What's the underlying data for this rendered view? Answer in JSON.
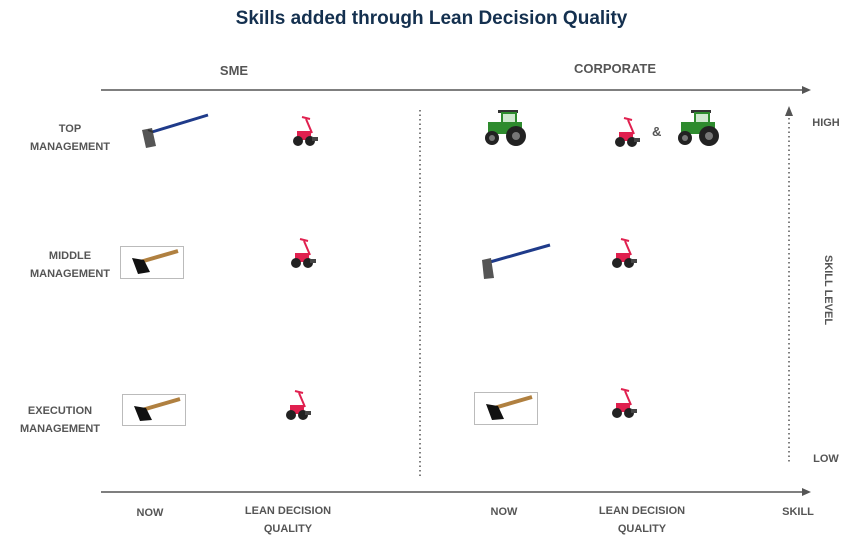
{
  "title": "Skills added through Lean Decision Quality",
  "columns": {
    "sme": "SME",
    "corporate": "CORPORATE"
  },
  "rows": {
    "top": [
      "TOP",
      "MANAGEMENT"
    ],
    "middle": [
      "MIDDLE",
      "MANAGEMENT"
    ],
    "execution": [
      "EXECUTION",
      "MANAGEMENT"
    ]
  },
  "x_axis": {
    "now_sme": "NOW",
    "ldq_sme": [
      "LEAN DECISION",
      "QUALITY"
    ],
    "now_corp": "NOW",
    "ldq_corp": [
      "LEAN DECISION",
      "QUALITY"
    ],
    "end_label": "SKILL"
  },
  "y_axis": {
    "high": "HIGH",
    "low": "LOW",
    "label": "SKILL LEVEL"
  },
  "ampersand": "&",
  "colors": {
    "title": "#14304f",
    "label": "#555555",
    "axis": "#555555",
    "hoe_handle": "#1f3b8a",
    "cultivator": "#e0204f",
    "tractor": "#2e8b2e"
  },
  "icons": {
    "top_sme_now": "long-hoe-icon",
    "top_sme_ldq": "cultivator-icon",
    "top_corp_now": "tractor-icon",
    "top_corp_ldq": [
      "cultivator-icon",
      "tractor-icon"
    ],
    "middle_sme_now": "short-hoe-icon",
    "middle_sme_ldq": "cultivator-icon",
    "middle_corp_now": "long-hoe-icon",
    "middle_corp_ldq": "cultivator-icon",
    "execution_sme_now": "short-hoe-icon",
    "execution_sme_ldq": "cultivator-icon",
    "execution_corp_now": "short-hoe-icon",
    "execution_corp_ldq": "cultivator-icon"
  }
}
